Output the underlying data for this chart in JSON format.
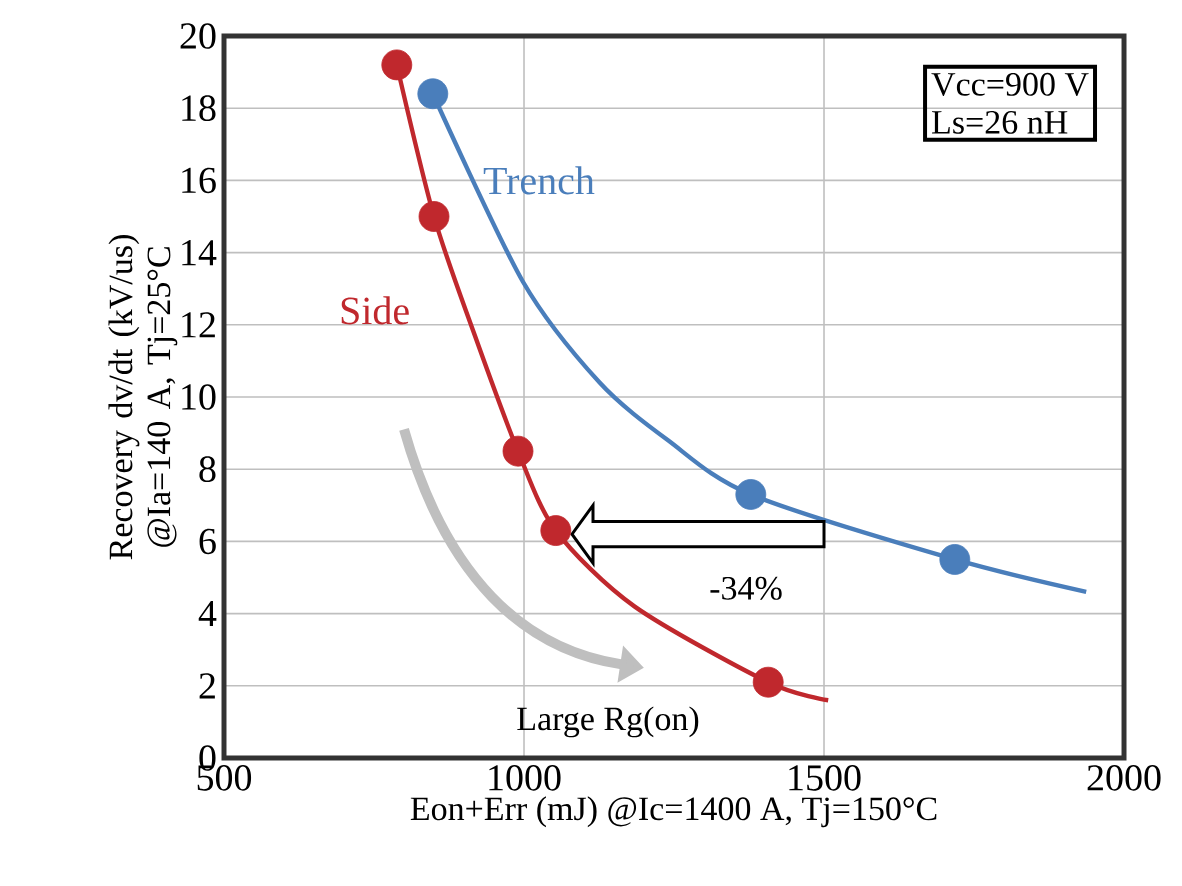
{
  "chart_data": {
    "type": "line",
    "xlabel": "Eon+Err (mJ) @Ic=1400 A, Tj=150°C",
    "ylabel": "Recovery dv/dt (kV/us) @Ia=140 A, Tj=25°C",
    "xlim": [
      500,
      2000
    ],
    "xticks": [
      500,
      1000,
      1500,
      2000
    ],
    "ylim": [
      0,
      20
    ],
    "yticks": [
      0,
      2,
      4,
      6,
      8,
      10,
      12,
      14,
      16,
      18,
      20
    ],
    "grid": true,
    "series": [
      {
        "name": "Trench",
        "color": "#4a7ebb",
        "x": [
          848,
          998,
          1126,
          1240,
          1378,
          1718,
          1937
        ],
        "values": [
          18.4,
          13.2,
          10.4,
          8.8,
          7.3,
          5.5,
          4.6
        ]
      },
      {
        "name": "Side",
        "color": "#c0282d",
        "x": [
          788,
          850,
          916,
          990,
          1053,
          1184,
          1407,
          1507
        ],
        "values": [
          19.2,
          15.0,
          11.8,
          8.5,
          6.3,
          4.2,
          2.1,
          1.6
        ]
      },
      {
        "type": "scatter",
        "color": "#4a7ebb",
        "marker": "circle",
        "x": [
          848,
          1378,
          1718
        ],
        "values": [
          18.4,
          7.3,
          5.5
        ]
      },
      {
        "type": "scatter",
        "color": "#c0282d",
        "marker": "circle",
        "x": [
          788,
          850,
          990,
          1053,
          1407
        ],
        "values": [
          19.2,
          15.0,
          8.5,
          6.3,
          2.1
        ]
      }
    ],
    "annotations": [
      "Vcc=900 V",
      "Ls=26 nH",
      "-34%",
      "Large Rg(on)"
    ]
  }
}
